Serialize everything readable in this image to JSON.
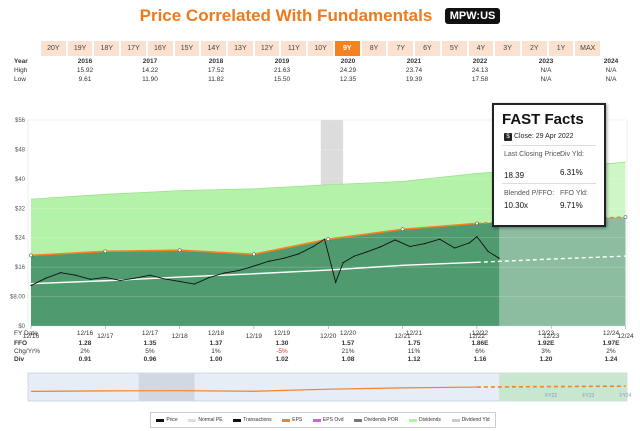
{
  "header": {
    "title": "Price Correlated With Fundamentals",
    "ticker": "MPW:US"
  },
  "ranges": [
    "20Y",
    "19Y",
    "18Y",
    "17Y",
    "16Y",
    "15Y",
    "14Y",
    "13Y",
    "12Y",
    "11Y",
    "10Y",
    "9Y",
    "8Y",
    "7Y",
    "6Y",
    "5Y",
    "4Y",
    "3Y",
    "2Y",
    "1Y",
    "MAX"
  ],
  "active_range": "9Y",
  "top_table": {
    "row_labels": [
      "Year",
      "High",
      "Low"
    ],
    "years": [
      "2016",
      "2017",
      "2018",
      "2019",
      "2020",
      "2021",
      "2022",
      "2023",
      "2024"
    ],
    "high": [
      "15.92",
      "14.22",
      "17.52",
      "21.63",
      "24.29",
      "23.74",
      "24.13",
      "N/A",
      "N/A"
    ],
    "low": [
      "9.61",
      "11.90",
      "11.82",
      "15.50",
      "12.35",
      "19.39",
      "17.58",
      "N/A",
      "N/A"
    ]
  },
  "bottom_table": {
    "row_labels": [
      "FY Date",
      "FFO",
      "Chg/Yr%",
      "Div"
    ],
    "fy_dates": [
      "12/16",
      "12/17",
      "12/18",
      "12/19",
      "12/20",
      "12/21",
      "12/22",
      "12/23",
      "12/24"
    ],
    "ffo": [
      "1.28",
      "1.35",
      "1.37",
      "1.30",
      "1.57",
      "1.75",
      "1.86E",
      "1.92E",
      "1.97E"
    ],
    "chg": [
      "2%",
      "5%",
      "1%",
      "-5%",
      "21%",
      "11%",
      "6%",
      "3%",
      "2%"
    ],
    "div": [
      "0.91",
      "0.96",
      "1.00",
      "1.02",
      "1.08",
      "1.12",
      "1.16",
      "1.20",
      "1.24"
    ]
  },
  "fast_facts": {
    "title": "FAST Facts",
    "close_icon": "$",
    "close": "Close: 29 Apr 2022",
    "last_label": "Last Closing Price:",
    "last_value": "18.39",
    "divyld_label": "Div Yld:",
    "divyld_value": "6.31%",
    "blended_label": "Blended P/FFO:",
    "blended_value": "10.30x",
    "ffoyld_label": "FFO Yld:",
    "ffoyld_value": "9.71%"
  },
  "legend": [
    "Price",
    "Normal PE",
    "Transactions",
    "EPS",
    "EPS Ovd",
    "Dividends POR",
    "Dividends",
    "Dividend Yld"
  ],
  "mini_labels": [
    "FY22",
    "FY23",
    "FY24"
  ],
  "colors": {
    "accent": "#f58220",
    "dividends": "#b5f2a9",
    "fundamental": "#4f9a6f",
    "price": "#111111",
    "normal": "#ffffff",
    "negative": "#d23a3a"
  },
  "chart_data": {
    "type": "area",
    "ylim": [
      0,
      56
    ],
    "y_ticks": [
      0,
      8,
      16,
      24,
      32,
      40,
      48,
      56
    ],
    "y_tick_labels": [
      "$0",
      "$8.00",
      "$16",
      "$24",
      "$32",
      "$40",
      "$48",
      "$56"
    ],
    "x_ticks": [
      2016,
      2017,
      2018,
      2019,
      2020,
      2021,
      2022,
      2023,
      2024
    ],
    "x_tick_labels": [
      "12/16",
      "12/17",
      "12/18",
      "12/19",
      "12/20",
      "12/21",
      "12/22",
      "12/23",
      "12/24"
    ],
    "series": [
      {
        "name": "Dividends",
        "x": [
          2016,
          2017,
          2018,
          2019,
          2020,
          2021,
          2022,
          2023,
          2024
        ],
        "values": [
          34.5,
          35.8,
          36.8,
          37.3,
          38.4,
          39.3,
          41.5,
          43.0,
          44.5
        ]
      },
      {
        "name": "FFO",
        "x": [
          2016,
          2017,
          2018,
          2019,
          2020,
          2021,
          2022,
          2023,
          2024
        ],
        "values": [
          19.2,
          20.3,
          20.6,
          19.5,
          23.6,
          26.3,
          27.9,
          28.8,
          29.6
        ]
      },
      {
        "name": "Normal PE",
        "x": [
          2016,
          2017,
          2018,
          2019,
          2020,
          2021,
          2022,
          2023,
          2024
        ],
        "values": [
          11.5,
          12.3,
          13.3,
          14.2,
          15.2,
          16.5,
          17.3,
          18.2,
          19.0
        ]
      },
      {
        "name": "Price",
        "x": [
          2016.0,
          2016.2,
          2016.4,
          2016.6,
          2016.8,
          2017.0,
          2017.2,
          2017.4,
          2017.6,
          2017.8,
          2018.0,
          2018.2,
          2018.4,
          2018.6,
          2018.8,
          2019.0,
          2019.2,
          2019.4,
          2019.6,
          2019.8,
          2019.95,
          2020.1,
          2020.2,
          2020.35,
          2020.5,
          2020.7,
          2020.9,
          2021.1,
          2021.3,
          2021.5,
          2021.7,
          2021.9,
          2022.0,
          2022.15,
          2022.3
        ],
        "values": [
          11.0,
          13.0,
          14.5,
          13.8,
          12.7,
          13.2,
          12.4,
          13.0,
          13.8,
          12.8,
          12.1,
          11.4,
          13.2,
          14.4,
          15.1,
          16.3,
          17.6,
          18.4,
          19.6,
          21.6,
          23.6,
          11.9,
          17.2,
          19.0,
          20.0,
          21.5,
          23.4,
          21.6,
          22.4,
          23.6,
          21.2,
          22.6,
          24.3,
          20.3,
          18.4
        ]
      }
    ]
  }
}
